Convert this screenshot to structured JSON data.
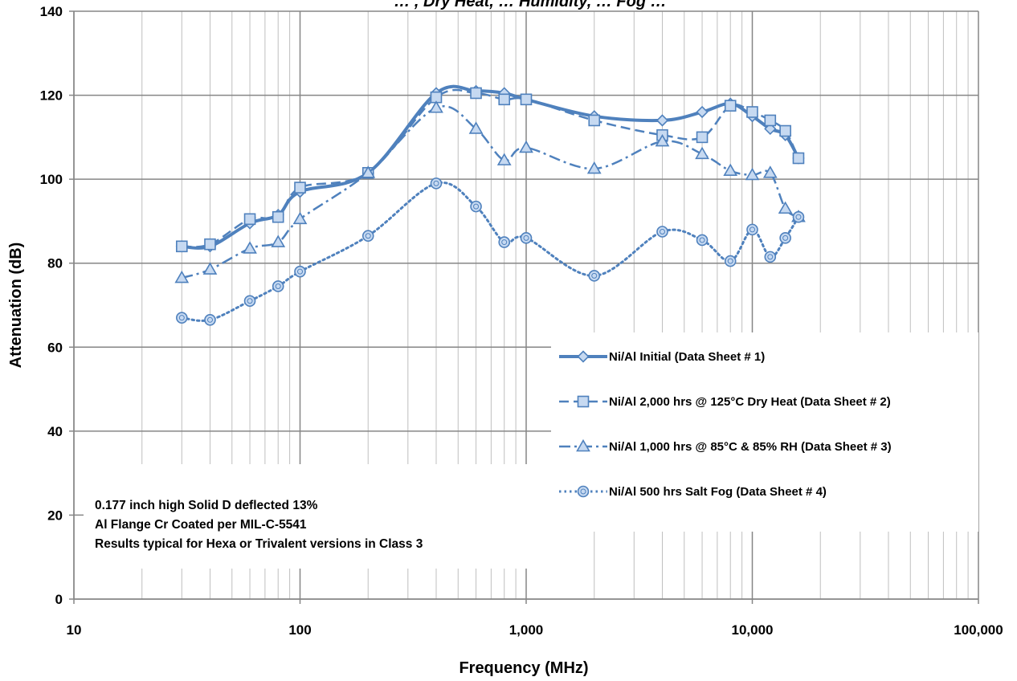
{
  "chart_data": {
    "type": "line",
    "title": "… , Dry Heat, … Humidity, … Fog …",
    "xlabel": "Frequency (MHz)",
    "ylabel": "Attenuation (dB)",
    "x_scale": "log",
    "xlim": [
      10,
      100000
    ],
    "ylim": [
      0,
      140
    ],
    "x_tick_labels": [
      "10",
      "100",
      "1,000",
      "10,000",
      "100,000"
    ],
    "y_tick_labels": [
      "0",
      "20",
      "40",
      "60",
      "80",
      "100",
      "120",
      "140"
    ],
    "grid": "major and minor vertical, major horizontal",
    "legend_position": "right-center",
    "series": [
      {
        "name": "Ni/Al Initial (Data Sheet # 1)",
        "marker": "diamond",
        "line_style": "solid",
        "x": [
          30,
          40,
          60,
          80,
          100,
          200,
          400,
          600,
          800,
          1000,
          2000,
          4000,
          6000,
          8000,
          10000,
          12000,
          14000,
          16000
        ],
        "y": [
          84,
          84,
          89.5,
          91.5,
          97,
          101.5,
          120.5,
          121,
          120.5,
          119,
          115,
          114,
          116,
          118,
          115,
          112,
          110.5,
          105
        ]
      },
      {
        "name": "Ni/Al 2,000 hrs @ 125°C Dry Heat (Data Sheet # 2)",
        "marker": "square",
        "line_style": "dashed",
        "x": [
          30,
          40,
          60,
          80,
          100,
          200,
          400,
          600,
          800,
          1000,
          2000,
          4000,
          6000,
          8000,
          10000,
          12000,
          14000,
          16000
        ],
        "y": [
          84,
          84.5,
          90.5,
          91,
          98,
          101.5,
          119.5,
          120.5,
          119,
          119,
          114,
          110.5,
          110,
          117.5,
          116,
          114,
          111.5,
          105
        ]
      },
      {
        "name": "Ni/Al 1,000 hrs @ 85°C & 85% RH (Data Sheet # 3)",
        "marker": "triangle",
        "line_style": "dash-dot",
        "x": [
          30,
          40,
          60,
          80,
          100,
          200,
          400,
          600,
          800,
          1000,
          2000,
          4000,
          6000,
          8000,
          10000,
          12000,
          14000,
          16000
        ],
        "y": [
          76.5,
          78.5,
          83.5,
          85,
          90.5,
          101.5,
          117,
          112,
          104.5,
          107.5,
          102.5,
          109,
          106,
          102,
          101,
          101.5,
          93,
          91
        ]
      },
      {
        "name": "Ni/Al 500 hrs Salt Fog (Data Sheet # 4)",
        "marker": "circle",
        "line_style": "dotted",
        "x": [
          30,
          40,
          60,
          80,
          100,
          200,
          400,
          600,
          800,
          1000,
          2000,
          4000,
          6000,
          8000,
          10000,
          12000,
          14000,
          16000
        ],
        "y": [
          67,
          66.5,
          71,
          74.5,
          78,
          86.5,
          99,
          93.5,
          85,
          86,
          77,
          87.5,
          85.5,
          80.5,
          88,
          81.5,
          86,
          91
        ]
      }
    ],
    "annotation": {
      "lines": [
        "0.177 inch high Solid D deflected 13%",
        "Al Flange Cr Coated per MIL-C-5541",
        "Results typical for Hexa or Trivalent versions in Class 3"
      ]
    },
    "colors": {
      "series": "#4f81bd",
      "marker_fill": "#c6d9f1",
      "major_grid": "#868686",
      "minor_grid": "#bfbfbf",
      "axis": "#868686"
    }
  }
}
